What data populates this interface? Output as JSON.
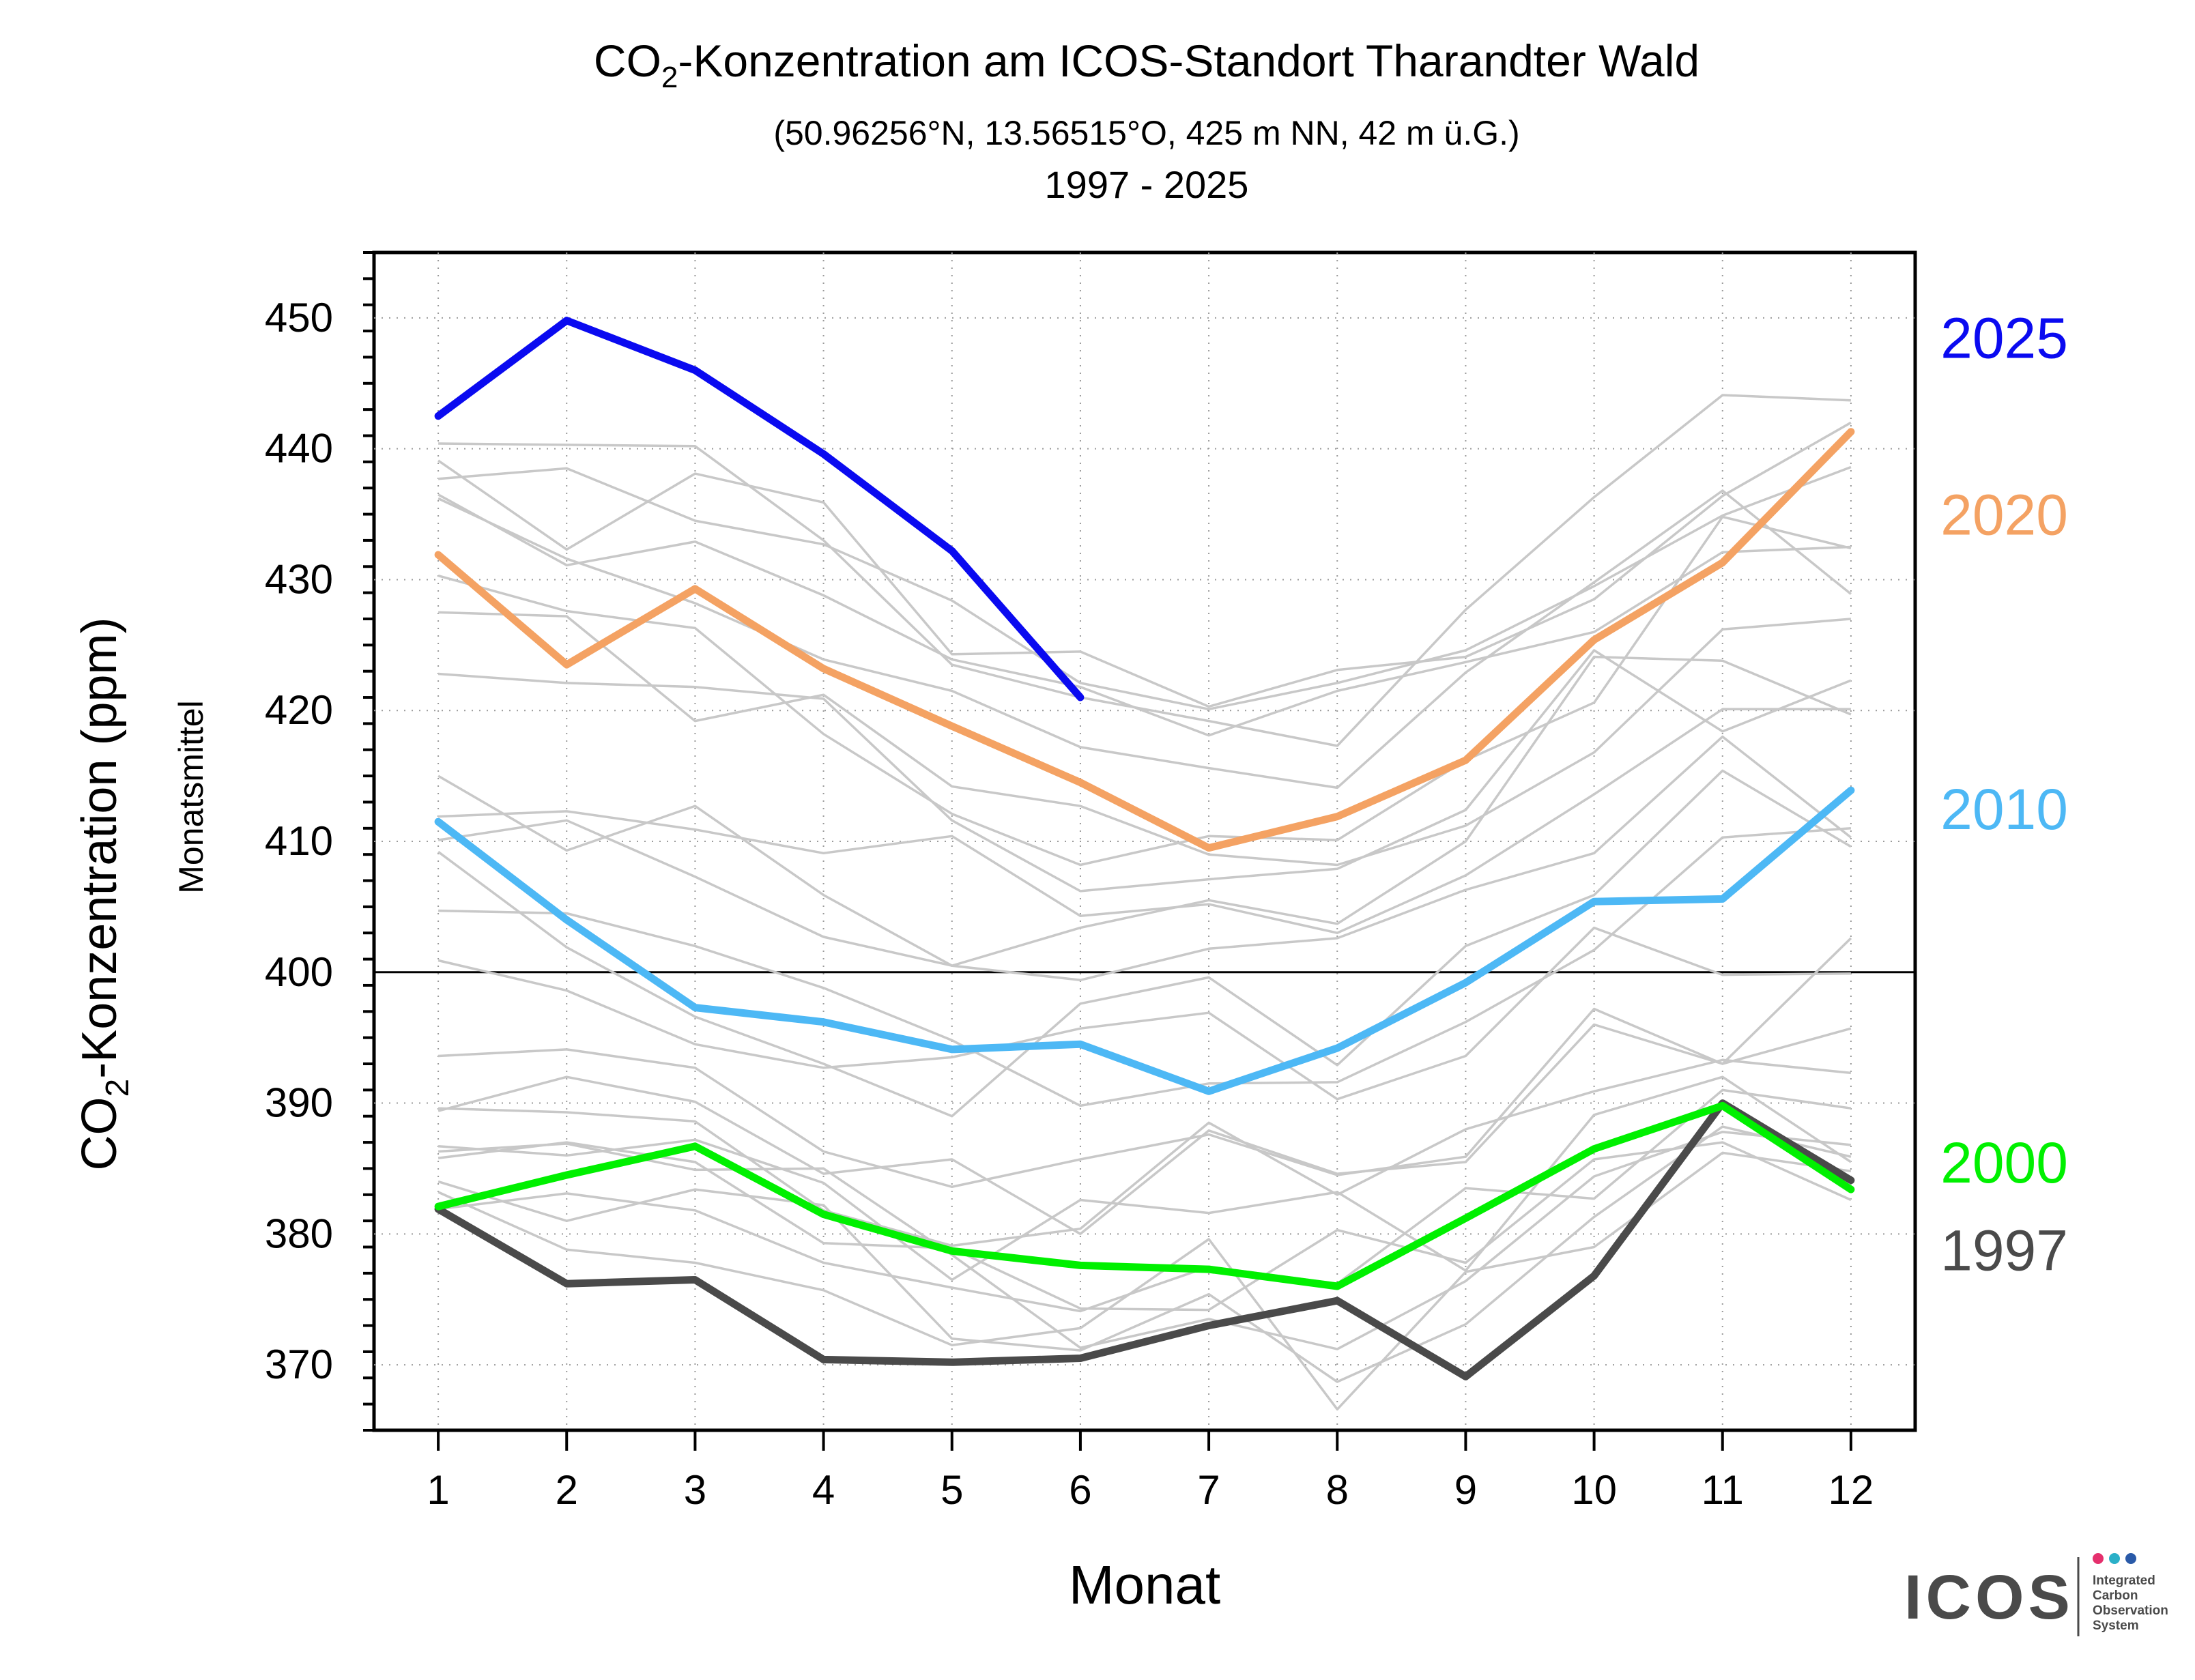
{
  "chart_data": {
    "type": "line",
    "title_prefix": "CO",
    "title_sub": "2",
    "title_suffix": "-Konzentration am ICOS-Standort Tharandter Wald",
    "subtitle": "(50.96256°N, 13.56515°O, 425 m NN, 42 m ü.G.)",
    "period": "1997 - 2025",
    "ylabel_prefix": "CO",
    "ylabel_sub": "2",
    "ylabel_suffix": "-Konzentration (ppm)",
    "ylabel_secondary": "Monatsmittel",
    "xlabel": "Monat",
    "x": [
      1,
      2,
      3,
      4,
      5,
      6,
      7,
      8,
      9,
      10,
      11,
      12
    ],
    "xlim": [
      0.5,
      12.5
    ],
    "ylim": [
      365,
      455
    ],
    "yticks": [
      370,
      380,
      390,
      400,
      410,
      420,
      430,
      440,
      450
    ],
    "reference_line": 400,
    "grid": true,
    "legend_placement": "right",
    "highlight_series": [
      {
        "name": "2025",
        "color": "#0a0af0",
        "values": [
          442.5,
          449.8,
          446.0,
          439.6,
          432.2,
          421.0,
          null,
          null,
          null,
          null,
          null,
          null
        ]
      },
      {
        "name": "2020",
        "color": "#f4a263",
        "values": [
          431.9,
          423.5,
          429.3,
          423.2,
          418.8,
          414.5,
          409.5,
          411.9,
          416.2,
          425.4,
          431.3,
          441.3
        ]
      },
      {
        "name": "2010",
        "color": "#4db8f5",
        "values": [
          411.5,
          404.0,
          397.3,
          396.2,
          394.1,
          394.5,
          390.9,
          394.2,
          399.2,
          405.4,
          405.6,
          413.9
        ]
      },
      {
        "name": "2000",
        "color": "#00f000",
        "values": [
          382.1,
          384.5,
          386.7,
          381.5,
          378.7,
          377.6,
          377.3,
          376.0,
          381.2,
          386.5,
          389.8,
          383.4
        ]
      },
      {
        "name": "1997",
        "color": "#4a4a4a",
        "values": [
          381.9,
          376.2,
          376.5,
          370.4,
          370.2,
          370.5,
          373.0,
          374.9,
          369.1,
          376.8,
          390.0,
          384.1
        ]
      }
    ],
    "background_series": [
      {
        "values": [
          440.4,
          440.3,
          440.2,
          433.0,
          423.5,
          421.0,
          419.2,
          417.3,
          427.7,
          436.3,
          444.1,
          443.7
        ]
      },
      {
        "values": [
          439.1,
          432.3,
          438.1,
          435.9,
          424.3,
          424.5,
          420.3,
          423.1,
          424.1,
          428.5,
          436.4,
          442.0
        ]
      },
      {
        "values": [
          437.7,
          438.5,
          434.5,
          432.7,
          428.4,
          422.1,
          420.1,
          422.1,
          424.6,
          429.5,
          434.9,
          438.6
        ]
      },
      {
        "values": [
          436.5,
          431.1,
          432.9,
          428.8,
          423.9,
          421.8,
          418.1,
          421.5,
          423.7,
          426.0,
          432.1,
          432.5
        ]
      },
      {
        "values": [
          436.2,
          431.6,
          428.2,
          423.9,
          421.5,
          417.2,
          415.6,
          414.1,
          422.9,
          429.8,
          436.8,
          428.9
        ]
      },
      {
        "values": [
          430.3,
          427.6,
          426.3,
          418.2,
          412.1,
          408.2,
          410.4,
          410.1,
          416.2,
          420.6,
          434.8,
          432.4
        ]
      },
      {
        "values": [
          427.5,
          427.2,
          419.2,
          421.2,
          414.2,
          412.7,
          409.0,
          408.2,
          411.2,
          416.8,
          426.2,
          427.0
        ]
      },
      {
        "values": [
          422.8,
          422.1,
          421.8,
          420.9,
          411.6,
          406.2,
          407.1,
          407.9,
          412.4,
          424.6,
          418.4,
          422.3
        ]
      },
      {
        "values": [
          415.0,
          409.3,
          412.7,
          405.9,
          400.5,
          403.4,
          405.5,
          403.7,
          410.0,
          424.1,
          423.8,
          419.7
        ]
      },
      {
        "values": [
          411.9,
          412.3,
          410.9,
          409.1,
          410.4,
          404.3,
          405.2,
          403.0,
          407.4,
          413.6,
          420.1,
          420.1
        ]
      },
      {
        "values": [
          410.1,
          411.6,
          407.3,
          402.7,
          400.5,
          399.4,
          401.8,
          402.6,
          406.3,
          409.1,
          418.0,
          410.3
        ]
      },
      {
        "values": [
          409.2,
          401.9,
          396.6,
          393.0,
          389.0,
          397.6,
          399.6,
          392.9,
          402.0,
          405.9,
          415.4,
          409.6
        ]
      },
      {
        "values": [
          404.7,
          404.5,
          402.0,
          398.8,
          394.8,
          389.8,
          391.5,
          391.6,
          396.2,
          401.7,
          410.3,
          411.0
        ]
      },
      {
        "values": [
          400.9,
          398.6,
          394.5,
          392.7,
          393.5,
          395.7,
          396.9,
          390.3,
          393.6,
          403.4,
          399.8,
          399.9
        ]
      },
      {
        "values": [
          393.6,
          394.1,
          392.7,
          386.3,
          383.6,
          385.7,
          387.6,
          384.5,
          385.9,
          397.2,
          393.0,
          402.6
        ]
      },
      {
        "values": [
          389.6,
          389.3,
          388.6,
          381.8,
          379.1,
          380.4,
          388.5,
          383.0,
          388.0,
          390.9,
          393.3,
          392.3
        ]
      },
      {
        "values": [
          389.4,
          392.0,
          390.1,
          384.6,
          385.7,
          380.0,
          387.9,
          384.6,
          385.5,
          396.0,
          393.0,
          395.7
        ]
      },
      {
        "values": [
          386.7,
          386.0,
          387.2,
          383.9,
          376.5,
          382.6,
          381.6,
          383.2,
          377.2,
          389.1,
          392.0,
          385.5
        ]
      },
      {
        "values": [
          385.8,
          387.0,
          385.5,
          379.3,
          378.9,
          374.3,
          374.2,
          380.3,
          377.8,
          385.7,
          387.0,
          382.6
        ]
      },
      {
        "values": [
          384.0,
          381.0,
          383.4,
          382.2,
          372.0,
          371.1,
          375.4,
          368.7,
          373.1,
          381.3,
          388.2,
          385.9
        ]
      },
      {
        "values": [
          383.2,
          378.8,
          377.8,
          375.7,
          371.5,
          372.8,
          379.6,
          366.6,
          377.1,
          379.0,
          386.2,
          384.8
        ]
      },
      {
        "values": [
          381.9,
          383.1,
          381.8,
          377.8,
          375.9,
          374.1,
          377.5,
          376.2,
          383.5,
          382.7,
          391.0,
          389.6
        ]
      },
      {
        "values": [
          386.3,
          386.9,
          384.9,
          385.0,
          378.4,
          371.3,
          373.5,
          371.2,
          376.4,
          384.4,
          387.8,
          386.8
        ]
      }
    ],
    "background_color": "#c8c8c8"
  },
  "logo": {
    "name": "ICOS",
    "line1": "Integrated",
    "line2": "Carbon",
    "line3": "Observation",
    "line4": "System",
    "dot_colors": [
      "#e5306d",
      "#2ab0c8",
      "#2a5aa8"
    ]
  }
}
